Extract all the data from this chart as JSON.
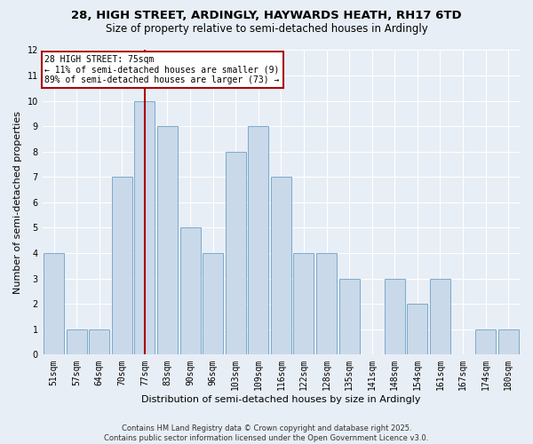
{
  "title_line1": "28, HIGH STREET, ARDINGLY, HAYWARDS HEATH, RH17 6TD",
  "title_line2": "Size of property relative to semi-detached houses in Ardingly",
  "xlabel": "Distribution of semi-detached houses by size in Ardingly",
  "ylabel": "Number of semi-detached properties",
  "categories": [
    "51sqm",
    "57sqm",
    "64sqm",
    "70sqm",
    "77sqm",
    "83sqm",
    "90sqm",
    "96sqm",
    "103sqm",
    "109sqm",
    "116sqm",
    "122sqm",
    "128sqm",
    "135sqm",
    "141sqm",
    "148sqm",
    "154sqm",
    "161sqm",
    "167sqm",
    "174sqm",
    "180sqm"
  ],
  "values": [
    4,
    1,
    1,
    7,
    10,
    9,
    5,
    4,
    8,
    9,
    7,
    4,
    4,
    3,
    0,
    3,
    2,
    3,
    0,
    1,
    1
  ],
  "bar_color": "#c9d9ea",
  "bar_edge_color": "#7aaacb",
  "vline_index": 4,
  "vline_color": "#aa0000",
  "annotation_text_line1": "28 HIGH STREET: 75sqm",
  "annotation_text_line2": "← 11% of semi-detached houses are smaller (9)",
  "annotation_text_line3": "89% of semi-detached houses are larger (73) →",
  "ylim": [
    0,
    12
  ],
  "yticks": [
    0,
    1,
    2,
    3,
    4,
    5,
    6,
    7,
    8,
    9,
    10,
    11,
    12
  ],
  "bg_color": "#e8eef5",
  "grid_color": "#ffffff",
  "title_fontsize": 9.5,
  "subtitle_fontsize": 8.5,
  "axis_label_fontsize": 8,
  "tick_fontsize": 7,
  "annotation_fontsize": 7,
  "footer_fontsize": 6,
  "footer_line1": "Contains HM Land Registry data © Crown copyright and database right 2025.",
  "footer_line2": "Contains public sector information licensed under the Open Government Licence v3.0."
}
